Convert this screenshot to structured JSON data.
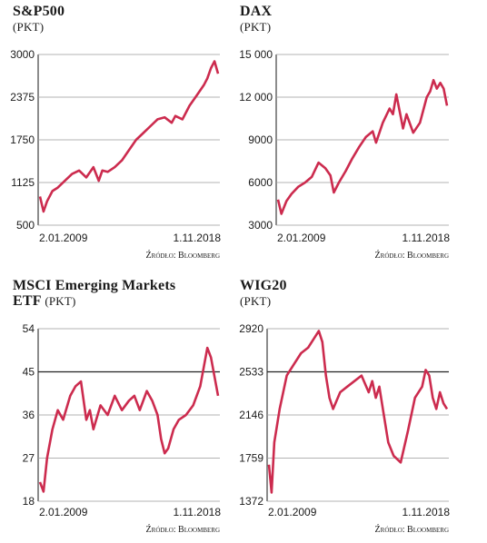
{
  "series_color": "#cc2b4e",
  "chart_data": [
    {
      "type": "line",
      "title": "S&P500",
      "title_line2": "",
      "unit": "(PKT)",
      "source": "Źródło: Bloomberg",
      "x_start": "2.01.2009",
      "x_end": "1.11.2018",
      "yticks": [
        500,
        1125,
        1750,
        2375,
        3000
      ],
      "ylim": [
        500,
        3000
      ],
      "highlight_tick": null,
      "series": [
        {
          "x": [
            0,
            0.02,
            0.04,
            0.07,
            0.1,
            0.14,
            0.18,
            0.22,
            0.26,
            0.3,
            0.33,
            0.35,
            0.38,
            0.42,
            0.46,
            0.5,
            0.54,
            0.58,
            0.62,
            0.66,
            0.7,
            0.74,
            0.76,
            0.8,
            0.84,
            0.88,
            0.92,
            0.94,
            0.96,
            0.98,
            1
          ],
          "values": [
            920,
            700,
            850,
            1000,
            1050,
            1150,
            1250,
            1300,
            1200,
            1350,
            1150,
            1300,
            1280,
            1350,
            1450,
            1600,
            1750,
            1850,
            1950,
            2050,
            2080,
            2000,
            2100,
            2050,
            2250,
            2400,
            2550,
            2650,
            2800,
            2900,
            2720
          ]
        }
      ]
    },
    {
      "type": "line",
      "title": "DAX",
      "title_line2": "",
      "unit": "(PKT)",
      "source": "Źródło: Bloomberg",
      "x_start": "2.01.2009",
      "x_end": "1.11.2018",
      "yticks": [
        3000,
        6000,
        9000,
        12000,
        15000
      ],
      "ylim": [
        3000,
        15000
      ],
      "highlight_tick": null,
      "series": [
        {
          "x": [
            0,
            0.02,
            0.05,
            0.08,
            0.12,
            0.16,
            0.2,
            0.24,
            0.28,
            0.31,
            0.33,
            0.36,
            0.4,
            0.44,
            0.48,
            0.52,
            0.56,
            0.58,
            0.62,
            0.66,
            0.68,
            0.7,
            0.72,
            0.74,
            0.76,
            0.8,
            0.84,
            0.88,
            0.9,
            0.92,
            0.94,
            0.96,
            0.98,
            1
          ],
          "values": [
            4800,
            3800,
            4700,
            5200,
            5700,
            6000,
            6400,
            7400,
            7000,
            6500,
            5300,
            6000,
            6800,
            7700,
            8500,
            9200,
            9600,
            8800,
            10200,
            11200,
            10800,
            12200,
            11000,
            9800,
            10800,
            9500,
            10200,
            12000,
            12400,
            13200,
            12600,
            13000,
            12600,
            11400
          ]
        }
      ]
    },
    {
      "type": "line",
      "title": "MSCI Emerging Markets",
      "title_line2": "ETF",
      "unit": "(PKT)",
      "source": "Źródło: Bloomberg",
      "x_start": "2.01.2009",
      "x_end": "1.11.2018",
      "yticks": [
        18,
        27,
        36,
        45,
        54
      ],
      "ylim": [
        18,
        54
      ],
      "highlight_tick": 45,
      "series": [
        {
          "x": [
            0,
            0.02,
            0.04,
            0.07,
            0.1,
            0.13,
            0.17,
            0.2,
            0.23,
            0.26,
            0.28,
            0.3,
            0.34,
            0.38,
            0.42,
            0.46,
            0.5,
            0.53,
            0.56,
            0.6,
            0.63,
            0.66,
            0.68,
            0.7,
            0.72,
            0.75,
            0.78,
            0.82,
            0.86,
            0.9,
            0.92,
            0.94,
            0.96,
            0.98,
            1
          ],
          "values": [
            22,
            20,
            27,
            33,
            37,
            35,
            40,
            42,
            43,
            35,
            37,
            33,
            38,
            36,
            40,
            37,
            39,
            40,
            37,
            41,
            39,
            36,
            31,
            28,
            29,
            33,
            35,
            36,
            38,
            42,
            46,
            50,
            48,
            44,
            40
          ]
        }
      ]
    },
    {
      "type": "line",
      "title": "WIG20",
      "title_line2": "",
      "unit": "(PKT)",
      "source": "Źródło: Bloomberg",
      "x_start": "2.01.2009",
      "x_end": "1.11.2018",
      "yticks": [
        1372,
        1759,
        2146,
        2533,
        2920
      ],
      "ylim": [
        1372,
        2920
      ],
      "highlight_tick": 2533,
      "series": [
        {
          "x": [
            0,
            0.015,
            0.03,
            0.06,
            0.1,
            0.14,
            0.18,
            0.22,
            0.26,
            0.28,
            0.3,
            0.32,
            0.34,
            0.36,
            0.4,
            0.44,
            0.48,
            0.52,
            0.56,
            0.58,
            0.6,
            0.62,
            0.64,
            0.67,
            0.7,
            0.74,
            0.78,
            0.82,
            0.86,
            0.88,
            0.9,
            0.92,
            0.94,
            0.96,
            0.98,
            1
          ],
          "values": [
            1700,
            1450,
            1900,
            2200,
            2500,
            2600,
            2700,
            2750,
            2850,
            2900,
            2800,
            2500,
            2300,
            2200,
            2350,
            2400,
            2450,
            2500,
            2350,
            2450,
            2300,
            2400,
            2200,
            1900,
            1780,
            1720,
            2000,
            2300,
            2400,
            2550,
            2500,
            2300,
            2200,
            2350,
            2250,
            2200
          ]
        }
      ]
    }
  ]
}
